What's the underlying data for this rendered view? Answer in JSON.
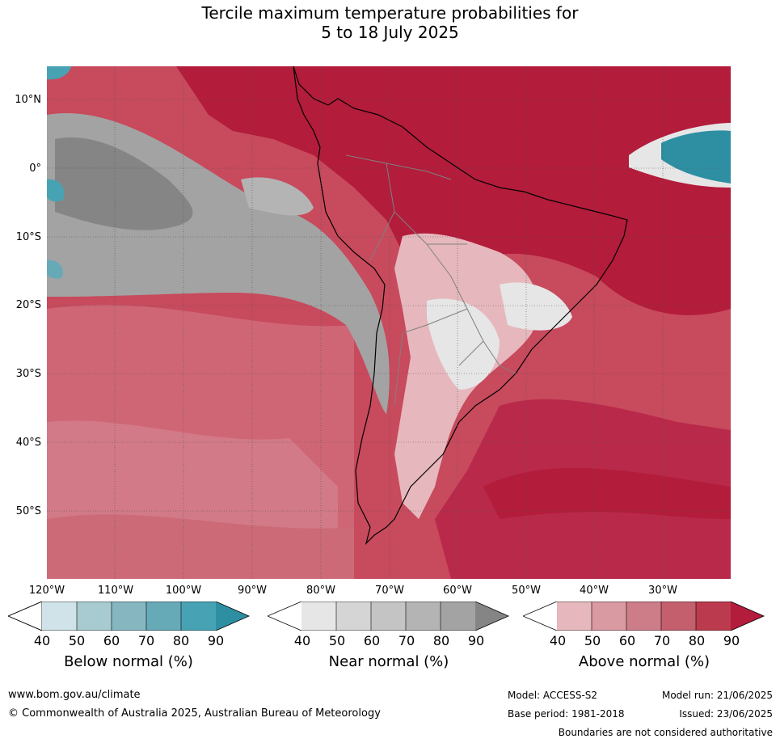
{
  "title_line1": "Tercile maximum temperature probabilities for",
  "title_line2": "5 to 18 July 2025",
  "lat_labels": [
    "10°N",
    "0°",
    "10°S",
    "20°S",
    "30°S",
    "40°S",
    "50°S"
  ],
  "lon_labels": [
    "120°W",
    "110°W",
    "100°W",
    "90°W",
    "80°W",
    "70°W",
    "60°W",
    "50°W",
    "40°W",
    "30°W"
  ],
  "colorbars": [
    {
      "title": "Below normal (%)",
      "ticks": [
        "40",
        "50",
        "60",
        "70",
        "80",
        "90"
      ],
      "colors": [
        "#cfe3e8",
        "#a8cad1",
        "#86b7c1",
        "#66aab8",
        "#47a3b3",
        "#2e8fa3"
      ]
    },
    {
      "title": "Near normal (%)",
      "ticks": [
        "40",
        "50",
        "60",
        "70",
        "80",
        "90"
      ],
      "colors": [
        "#e6e6e6",
        "#d5d5d5",
        "#c4c4c4",
        "#b4b4b4",
        "#a3a3a3",
        "#858585"
      ]
    },
    {
      "title": "Above normal (%)",
      "ticks": [
        "40",
        "50",
        "60",
        "70",
        "80",
        "90"
      ],
      "colors": [
        "#e6b8bd",
        "#d99aa2",
        "#cd7d88",
        "#c45f6d",
        "#bb3a4d",
        "#b31c3b"
      ]
    }
  ],
  "footer": {
    "website": "www.bom.gov.au/climate",
    "copyright": "© Commonwealth of Australia 2025, Australian Bureau of Meteorology",
    "model": "Model: ACCESS-S2",
    "base_period": "Base period: 1981-2018",
    "model_run": "Model run: 21/06/2025",
    "issued": "Issued: 23/06/2025",
    "disclaimer": "Boundaries are not considered authoritative"
  }
}
